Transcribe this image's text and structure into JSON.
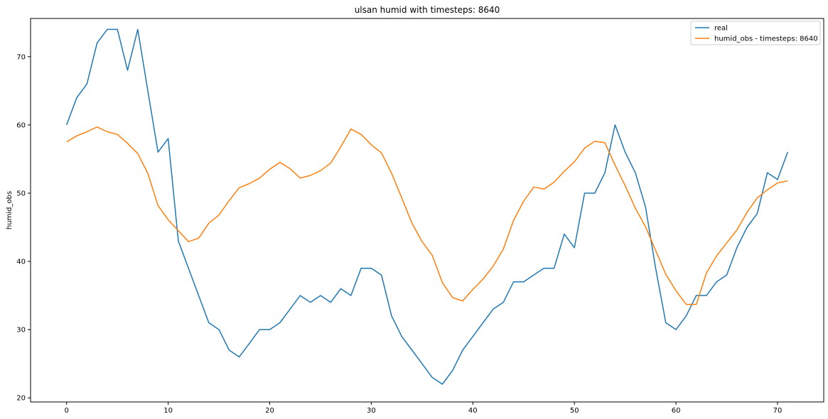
{
  "chart_data": {
    "type": "line",
    "title": "ulsan humid with timesteps: 8640",
    "xlabel": "",
    "ylabel": "humid_obs",
    "xlim": [
      -3.55,
      74.55
    ],
    "ylim": [
      19.4,
      75.6
    ],
    "xticks": [
      0,
      10,
      20,
      30,
      40,
      50,
      60,
      70
    ],
    "yticks": [
      20,
      30,
      40,
      50,
      60,
      70
    ],
    "grid": false,
    "legend": "top-right",
    "x": [
      0,
      1,
      2,
      3,
      4,
      5,
      6,
      7,
      8,
      9,
      10,
      11,
      12,
      13,
      14,
      15,
      16,
      17,
      18,
      19,
      20,
      21,
      22,
      23,
      24,
      25,
      26,
      27,
      28,
      29,
      30,
      31,
      32,
      33,
      34,
      35,
      36,
      37,
      38,
      39,
      40,
      41,
      42,
      43,
      44,
      45,
      46,
      47,
      48,
      49,
      50,
      51,
      52,
      53,
      54,
      55,
      56,
      57,
      58,
      59,
      60,
      61,
      62,
      63,
      64,
      65,
      66,
      67,
      68,
      69,
      70,
      71
    ],
    "series": [
      {
        "name": "real",
        "color": "#1f77b4",
        "values": [
          60,
          64,
          66,
          72,
          74,
          74,
          68,
          74,
          65,
          56,
          58,
          43,
          39,
          35,
          31,
          30,
          27,
          26,
          28,
          30,
          30,
          31,
          33,
          35,
          34,
          35,
          34,
          36,
          35,
          39,
          39,
          38,
          32,
          29,
          27,
          25,
          23,
          22,
          24,
          27,
          29,
          31,
          33,
          34,
          37,
          37,
          38,
          39,
          39,
          44,
          42,
          50,
          50,
          53,
          60,
          56,
          53,
          48,
          39,
          31,
          30,
          32,
          35,
          35,
          37,
          38,
          42,
          45,
          47,
          53,
          52,
          56
        ]
      },
      {
        "name": "humid_obs - timesteps: 8640",
        "color": "#ff7f0e",
        "values": [
          57.5,
          58.4,
          59.0,
          59.7,
          59.0,
          58.6,
          57.3,
          55.8,
          52.9,
          48.2,
          46.1,
          44.5,
          42.9,
          43.4,
          45.6,
          46.8,
          48.9,
          50.8,
          51.4,
          52.2,
          53.5,
          54.5,
          53.6,
          52.2,
          52.6,
          53.3,
          54.4,
          56.8,
          59.4,
          58.6,
          57.1,
          55.9,
          52.9,
          49.3,
          45.6,
          42.9,
          40.9,
          36.9,
          34.7,
          34.2,
          35.9,
          37.4,
          39.3,
          41.8,
          46.0,
          48.8,
          50.9,
          50.6,
          51.6,
          53.2,
          54.6,
          56.6,
          57.6,
          57.4,
          54.1,
          51.1,
          47.8,
          45.1,
          41.6,
          38.1,
          35.7,
          33.7,
          33.7,
          38.3,
          40.8,
          42.7,
          44.6,
          47.2,
          49.3,
          50.5,
          51.5,
          51.8
        ]
      }
    ]
  }
}
